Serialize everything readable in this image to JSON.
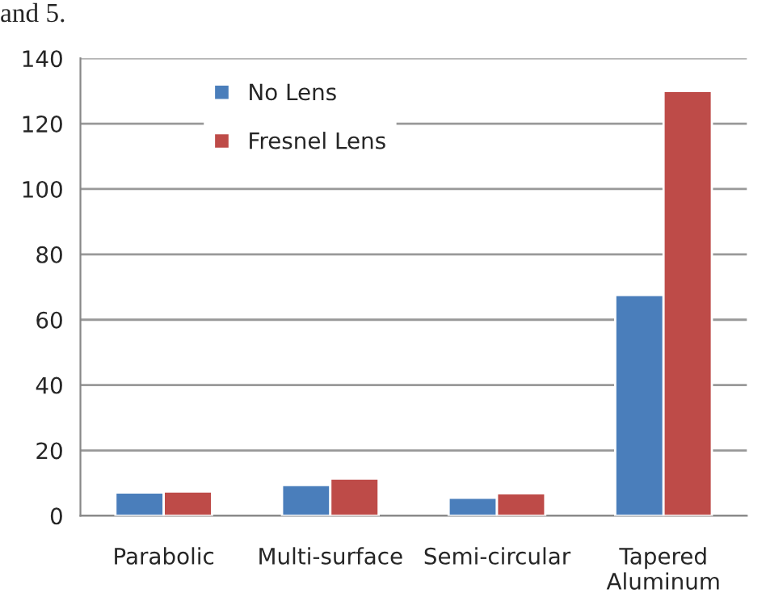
{
  "chart_data": {
    "type": "bar",
    "categories": [
      "Parabolic",
      "Multi-surface",
      "Semi-circular",
      "Tapered\nAluminum"
    ],
    "series": [
      {
        "name": "No Lens",
        "color": "#4a7ebb",
        "values": [
          7.1,
          9.4,
          5.5,
          67.6
        ]
      },
      {
        "name": "Fresnel Lens",
        "color": "#be4b48",
        "values": [
          7.4,
          11.4,
          6.9,
          130
        ]
      }
    ],
    "ylim": [
      0,
      140
    ],
    "yticks": [
      0,
      20,
      40,
      60,
      80,
      100,
      120,
      140
    ],
    "grid": "y",
    "legend": "top left",
    "annotations": [
      "and 5."
    ]
  }
}
